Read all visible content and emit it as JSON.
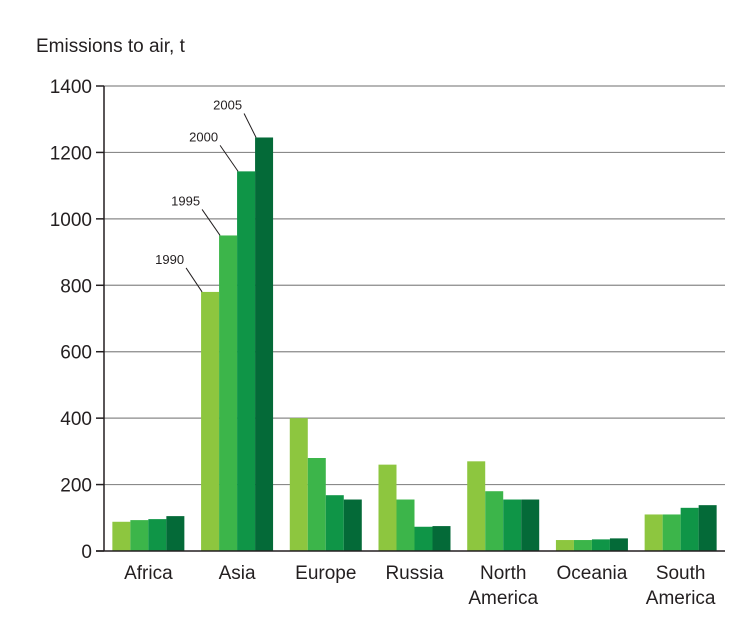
{
  "chart_data": {
    "type": "bar",
    "ylabel": "Emissions to air, t",
    "ylim": [
      0,
      1400
    ],
    "yticks": [
      0,
      200,
      400,
      600,
      800,
      1000,
      1200,
      1400
    ],
    "grid": true,
    "categories": [
      [
        "Africa"
      ],
      [
        "Asia"
      ],
      [
        "Europe"
      ],
      [
        "Russia"
      ],
      [
        "North",
        "America"
      ],
      [
        "Oceania"
      ],
      [
        "South",
        "America"
      ]
    ],
    "series": [
      {
        "name": "1990",
        "color": "#8dc63f",
        "values": [
          88,
          780,
          400,
          260,
          270,
          33,
          110
        ]
      },
      {
        "name": "1995",
        "color": "#3cb54a",
        "values": [
          93,
          950,
          280,
          155,
          180,
          33,
          110
        ]
      },
      {
        "name": "2000",
        "color": "#0f9547",
        "values": [
          96,
          1143,
          168,
          73,
          155,
          35,
          130
        ]
      },
      {
        "name": "2005",
        "color": "#046a38",
        "values": [
          105,
          1245,
          155,
          75,
          155,
          38,
          138
        ]
      }
    ],
    "annotation_category": "Asia"
  }
}
